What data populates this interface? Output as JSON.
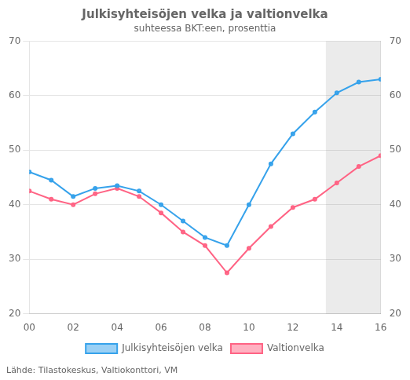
{
  "chart_data": {
    "type": "line",
    "title": "Julkisyhteisöjen velka ja valtionvelka",
    "subtitle": "suhteessa BKT:een, prosenttia",
    "source": "Lähde: Tilastokeskus, Valtiokonttori, VM",
    "x": [
      2000,
      2001,
      2002,
      2003,
      2004,
      2005,
      2006,
      2007,
      2008,
      2009,
      2010,
      2011,
      2012,
      2013,
      2014,
      2015,
      2016
    ],
    "series": [
      {
        "name": "Julkisyhteisöjen velka",
        "values": [
          46.0,
          44.5,
          41.5,
          43.0,
          43.5,
          42.5,
          40.0,
          37.0,
          34.0,
          32.5,
          40.0,
          47.5,
          53.0,
          57.0,
          60.5,
          62.5,
          63.0
        ]
      },
      {
        "name": "Valtionvelka",
        "values": [
          42.5,
          41.0,
          40.0,
          42.0,
          43.0,
          41.5,
          38.5,
          35.0,
          32.5,
          27.5,
          32.0,
          36.0,
          39.5,
          41.0,
          44.0,
          47.0,
          49.0
        ]
      }
    ],
    "forecast_start": 2013.5,
    "xlim": [
      2000,
      2016
    ],
    "xticks": [
      {
        "value": 2000,
        "label": "00"
      },
      {
        "value": 2002,
        "label": "02"
      },
      {
        "value": 2004,
        "label": "04"
      },
      {
        "value": 2006,
        "label": "06"
      },
      {
        "value": 2008,
        "label": "08"
      },
      {
        "value": 2010,
        "label": "10"
      },
      {
        "value": 2012,
        "label": "12"
      },
      {
        "value": 2014,
        "label": "14"
      },
      {
        "value": 2016,
        "label": "16"
      }
    ],
    "ylim": [
      20,
      70
    ],
    "yticks": [
      20,
      30,
      40,
      50,
      60,
      70
    ],
    "y2lim": [
      20,
      70
    ],
    "y2ticks": [
      20,
      30,
      40,
      50,
      60,
      70
    ],
    "grid": "y",
    "legend": "bottom"
  }
}
